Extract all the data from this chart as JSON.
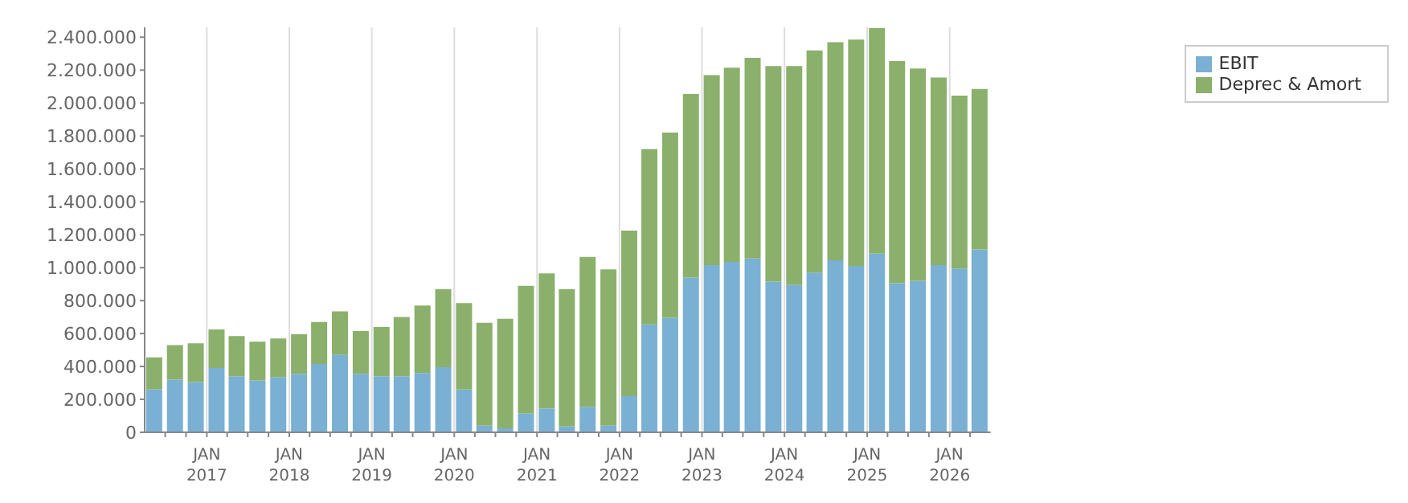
{
  "chart_data": {
    "type": "bar",
    "stacked": true,
    "x": [
      "2016-05-15",
      "2016-08-15",
      "2016-11-15",
      "2017-02-15",
      "2017-05-15",
      "2017-08-15",
      "2017-11-15",
      "2018-02-15",
      "2018-05-15",
      "2018-08-15",
      "2018-11-15",
      "2019-02-15",
      "2019-05-15",
      "2019-08-15",
      "2019-11-15",
      "2020-02-15",
      "2020-05-15",
      "2020-08-15",
      "2020-11-15",
      "2021-02-15",
      "2021-05-15",
      "2021-08-15",
      "2021-11-15",
      "2022-02-15",
      "2022-05-15",
      "2022-08-15",
      "2022-11-15",
      "2023-02-15",
      "2023-05-15",
      "2023-08-15",
      "2023-11-15",
      "2024-02-15",
      "2024-05-15",
      "2024-08-15",
      "2024-11-15",
      "2025-02-15",
      "2025-05-15",
      "2025-08-15",
      "2025-11-15",
      "2026-02-15",
      "2026-05-15"
    ],
    "series": [
      {
        "name": "EBIT",
        "color": "#7ab0d4",
        "values": [
          260000,
          320000,
          305000,
          390000,
          340000,
          315000,
          335000,
          355000,
          415000,
          470000,
          355000,
          340000,
          340000,
          360000,
          395000,
          260000,
          40000,
          25000,
          115000,
          145000,
          35000,
          155000,
          40000,
          220000,
          655000,
          695000,
          940000,
          1015000,
          1035000,
          1055000,
          915000,
          895000,
          970000,
          1045000,
          1010000,
          1085000,
          905000,
          920000,
          1015000,
          995000,
          1110000
        ]
      },
      {
        "name": "Deprec & Amort",
        "color": "#8ab06b",
        "values": [
          195000,
          210000,
          235000,
          235000,
          245000,
          235000,
          235000,
          240000,
          255000,
          265000,
          260000,
          300000,
          360000,
          410000,
          475000,
          525000,
          625000,
          665000,
          775000,
          820000,
          835000,
          910000,
          950000,
          1005000,
          1065000,
          1125000,
          1115000,
          1155000,
          1180000,
          1220000,
          1310000,
          1330000,
          1350000,
          1325000,
          1375000,
          1370000,
          1350000,
          1290000,
          1140000,
          1050000,
          975000
        ]
      }
    ],
    "xlim": [
      "2016-04-01",
      "2026-07-01"
    ],
    "xticks": [
      {
        "value": "2016-07-01",
        "label": null
      },
      {
        "value": "2016-10-01",
        "label": null
      },
      {
        "value": "2017-01-01",
        "label": "JAN 2017"
      },
      {
        "value": "2017-04-01",
        "label": null
      },
      {
        "value": "2017-07-01",
        "label": null
      },
      {
        "value": "2017-10-01",
        "label": null
      },
      {
        "value": "2018-01-01",
        "label": "JAN 2018"
      },
      {
        "value": "2018-04-01",
        "label": null
      },
      {
        "value": "2018-07-01",
        "label": null
      },
      {
        "value": "2018-10-01",
        "label": null
      },
      {
        "value": "2019-01-01",
        "label": "JAN 2019"
      },
      {
        "value": "2019-04-01",
        "label": null
      },
      {
        "value": "2019-07-01",
        "label": null
      },
      {
        "value": "2019-10-01",
        "label": null
      },
      {
        "value": "2020-01-01",
        "label": "JAN 2020"
      },
      {
        "value": "2020-04-01",
        "label": null
      },
      {
        "value": "2020-07-01",
        "label": null
      },
      {
        "value": "2020-10-01",
        "label": null
      },
      {
        "value": "2021-01-01",
        "label": "JAN 2021"
      },
      {
        "value": "2021-04-01",
        "label": null
      },
      {
        "value": "2021-07-01",
        "label": null
      },
      {
        "value": "2021-10-01",
        "label": null
      },
      {
        "value": "2022-01-01",
        "label": "JAN 2022"
      },
      {
        "value": "2022-04-01",
        "label": null
      },
      {
        "value": "2022-07-01",
        "label": null
      },
      {
        "value": "2022-10-01",
        "label": null
      },
      {
        "value": "2023-01-01",
        "label": "JAN 2023"
      },
      {
        "value": "2023-04-01",
        "label": null
      },
      {
        "value": "2023-07-01",
        "label": null
      },
      {
        "value": "2023-10-01",
        "label": null
      },
      {
        "value": "2024-01-01",
        "label": "JAN 2024"
      },
      {
        "value": "2024-04-01",
        "label": null
      },
      {
        "value": "2024-07-01",
        "label": null
      },
      {
        "value": "2024-10-01",
        "label": null
      },
      {
        "value": "2025-01-01",
        "label": "JAN 2025"
      },
      {
        "value": "2025-04-01",
        "label": null
      },
      {
        "value": "2025-07-01",
        "label": null
      },
      {
        "value": "2025-10-01",
        "label": null
      },
      {
        "value": "2026-01-01",
        "label": "JAN 2026"
      },
      {
        "value": "2026-04-01",
        "label": null
      }
    ],
    "ylim": [
      0,
      2460000
    ],
    "yticks": [
      {
        "value": 0,
        "label": "0"
      },
      {
        "value": 200000,
        "label": "200.000"
      },
      {
        "value": 400000,
        "label": "400.000"
      },
      {
        "value": 600000,
        "label": "600.000"
      },
      {
        "value": 800000,
        "label": "800.000"
      },
      {
        "value": 1000000,
        "label": "1.000.000"
      },
      {
        "value": 1200000,
        "label": "1.200.000"
      },
      {
        "value": 1400000,
        "label": "1.400.000"
      },
      {
        "value": 1600000,
        "label": "1.600.000"
      },
      {
        "value": 1800000,
        "label": "1.800.000"
      },
      {
        "value": 2000000,
        "label": "2.000.000"
      },
      {
        "value": 2200000,
        "label": "2.200.000"
      },
      {
        "value": 2400000,
        "label": "2.400.000"
      }
    ],
    "grid": true,
    "legend": "top right"
  }
}
